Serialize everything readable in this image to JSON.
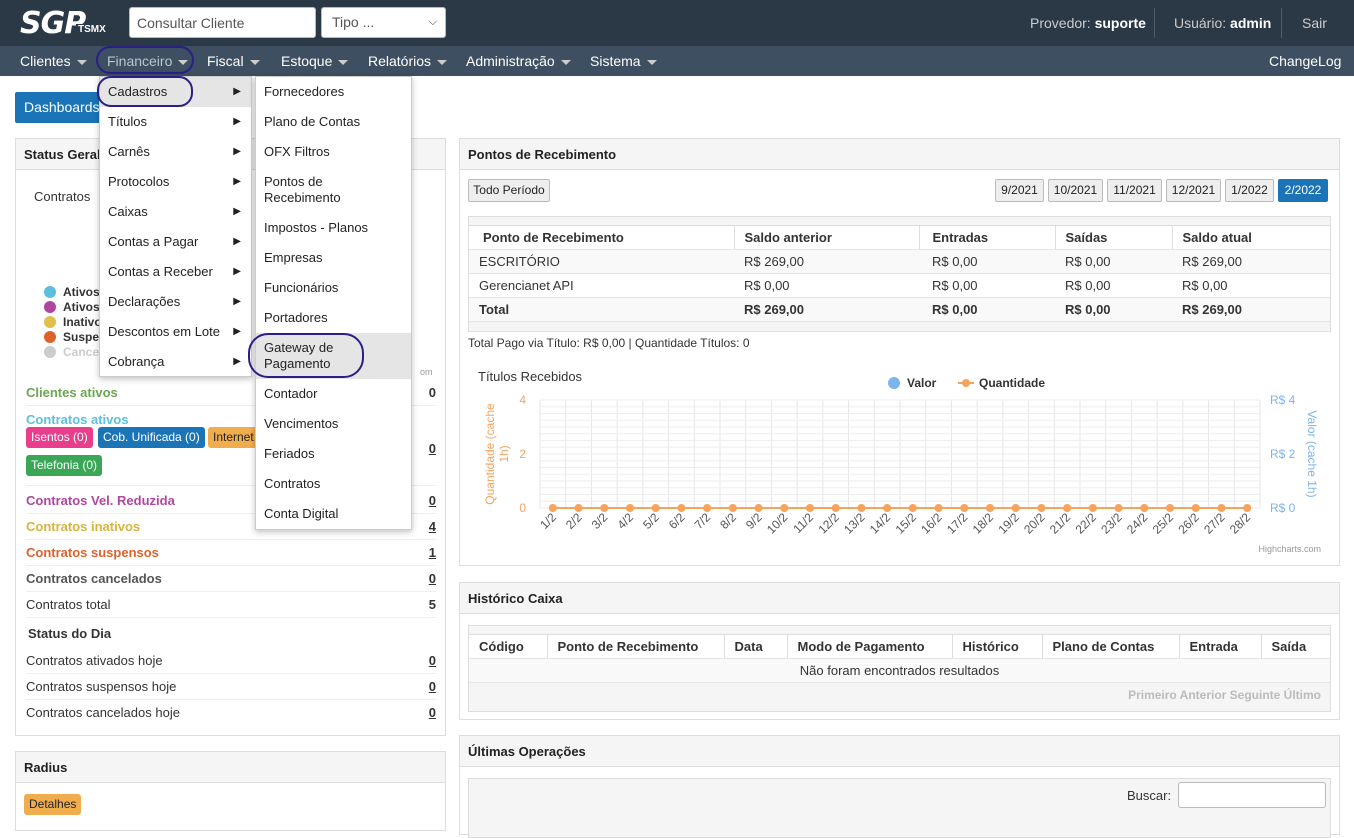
{
  "topbar": {
    "logo": "SGP",
    "logo_sub": "TSMX",
    "search_placeholder": "Consultar Cliente",
    "tipo_selected": "Tipo ...",
    "provedor_label": "Provedor:",
    "provedor_value": "suporte",
    "usuario_label": "Usuário:",
    "usuario_value": "admin",
    "sair": "Sair"
  },
  "nav": {
    "items": [
      "Clientes",
      "Financeiro",
      "Fiscal",
      "Estoque",
      "Relatórios",
      "Administração",
      "Sistema"
    ],
    "changelog": "ChangeLog"
  },
  "dashboards_button": "Dashboards",
  "financeiro_menu": [
    "Cadastros",
    "Títulos",
    "Carnês",
    "Protocolos",
    "Caixas",
    "Contas a Pagar",
    "Contas a Receber",
    "Declarações",
    "Descontos em Lote",
    "Cobrança"
  ],
  "cadastros_menu": [
    "Fornecedores",
    "Plano de Contas",
    "OFX Filtros",
    "Pontos de Recebimento",
    "Impostos - Planos",
    "Empresas",
    "Funcionários",
    "Portadores",
    "Gateway de Pagamento",
    "Contador",
    "Vencimentos",
    "Feriados",
    "Contratos",
    "Conta Digital"
  ],
  "status_geral": {
    "title": "Status Geral",
    "contratos_label": "Contratos",
    "legend": [
      {
        "label": "Ativos",
        "color": "#5bc0de"
      },
      {
        "label": "Ativos",
        "color": "#b0479e"
      },
      {
        "label": "Inativo",
        "color": "#e0c04a"
      },
      {
        "label": "Suspe",
        "color": "#e0622b"
      },
      {
        "label": "Cance",
        "color": "#cccccc"
      }
    ],
    "credit": "om",
    "clientes_ativos": {
      "label": "Clientes ativos",
      "value": "0"
    },
    "contratos_ativos": {
      "label": "Contratos ativos",
      "value": "0"
    },
    "tags": [
      "Isentos (0)",
      "Cob. Unificada (0)",
      "Internet",
      "Telefonia (0)"
    ],
    "rows": [
      {
        "label": "Contratos Vel. Reduzida",
        "value": "0"
      },
      {
        "label": "Contratos inativos",
        "value": "4"
      },
      {
        "label": "Contratos suspensos",
        "value": "1"
      },
      {
        "label": "Contratos cancelados",
        "value": "0"
      },
      {
        "label": "Contratos total",
        "value": "5"
      }
    ],
    "status_dia_title": "Status do Dia",
    "dia_rows": [
      {
        "label": "Contratos ativados hoje",
        "value": "0"
      },
      {
        "label": "Contratos suspensos hoje",
        "value": "0"
      },
      {
        "label": "Contratos cancelados hoje",
        "value": "0"
      }
    ]
  },
  "radius": {
    "title": "Radius",
    "detalhes": "Detalhes"
  },
  "pontos": {
    "title": "Pontos de Recebimento",
    "todo_periodo": "Todo Período",
    "periods": [
      "9/2021",
      "10/2021",
      "11/2021",
      "12/2021",
      "1/2022",
      "2/2022"
    ],
    "headers": [
      "Ponto de Recebimento",
      "Saldo anterior",
      "Entradas",
      "Saídas",
      "Saldo atual"
    ],
    "rows": [
      [
        "ESCRITÓRIO",
        "R$ 269,00",
        "R$ 0,00",
        "R$ 0,00",
        "R$ 269,00"
      ],
      [
        "Gerencianet API",
        "R$ 0,00",
        "R$ 0,00",
        "R$ 0,00",
        "R$ 0,00"
      ]
    ],
    "total": [
      "Total",
      "R$ 269,00",
      "R$ 0,00",
      "R$ 0,00",
      "R$ 269,00"
    ],
    "summary": "Total Pago via Título: R$ 0,00 | Quantidade Títulos: 0",
    "credit": "Highcharts.com"
  },
  "chart_data": {
    "type": "line",
    "title": "Títulos Recebidos",
    "categories": [
      "1/2",
      "2/2",
      "3/2",
      "4/2",
      "5/2",
      "6/2",
      "7/2",
      "8/2",
      "9/2",
      "10/2",
      "11/2",
      "12/2",
      "13/2",
      "14/2",
      "15/2",
      "16/2",
      "17/2",
      "18/2",
      "19/2",
      "20/2",
      "21/2",
      "22/2",
      "23/2",
      "24/2",
      "25/2",
      "26/2",
      "27/2",
      "28/2"
    ],
    "series": [
      {
        "name": "Valor",
        "color": "#7cb5ec",
        "values": [
          0,
          0,
          0,
          0,
          0,
          0,
          0,
          0,
          0,
          0,
          0,
          0,
          0,
          0,
          0,
          0,
          0,
          0,
          0,
          0,
          0,
          0,
          0,
          0,
          0,
          0,
          0,
          0
        ]
      },
      {
        "name": "Quantidade",
        "color": "#f7a35c",
        "values": [
          0,
          0,
          0,
          0,
          0,
          0,
          0,
          0,
          0,
          0,
          0,
          0,
          0,
          0,
          0,
          0,
          0,
          0,
          0,
          0,
          0,
          0,
          0,
          0,
          0,
          0,
          0,
          0
        ]
      }
    ],
    "ylabel_left": "Quantidade (cache 1h)",
    "ylabel_right": "Valor (cache 1h)",
    "yticks_left": [
      "0",
      "2",
      "4"
    ],
    "yticks_right": [
      "R$ 0",
      "R$ 2",
      "R$ 4"
    ],
    "ylim": [
      0,
      4
    ],
    "grid": true,
    "legend": "top"
  },
  "historico": {
    "title": "Histórico Caixa",
    "headers": [
      "Código",
      "Ponto de Recebimento",
      "Data",
      "Modo de Pagamento",
      "Histórico",
      "Plano de Contas",
      "Entrada",
      "Saída"
    ],
    "empty": "Não foram encontrados resultados",
    "pager": "Primeiro Anterior Seguinte Último"
  },
  "ultimas": {
    "title": "Últimas Operações",
    "buscar": "Buscar:"
  }
}
